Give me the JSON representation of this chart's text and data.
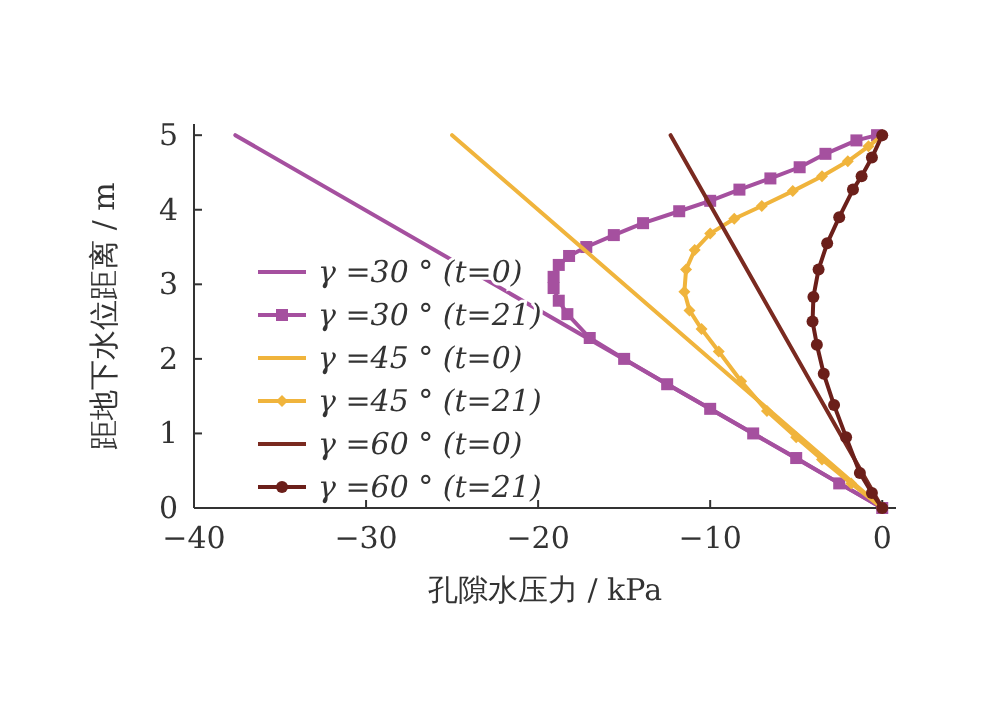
{
  "chart_data": {
    "type": "line",
    "xlabel": "孔隙水压力 / kPa",
    "ylabel": "距地下水位距离 / m",
    "xlim": [
      -40,
      0.8
    ],
    "ylim": [
      0,
      5.15
    ],
    "xticks": [
      -40,
      -30,
      -20,
      -10,
      0
    ],
    "yticks": [
      0,
      1,
      2,
      3,
      4,
      5
    ],
    "grid": false,
    "legend": "left",
    "series": [
      {
        "name": "γ =30 ° (t=0)",
        "color": "#a5509f",
        "x": [
          -37.6,
          0
        ],
        "values": [
          5,
          0
        ]
      },
      {
        "name": "γ =30 ° (t=21)",
        "color": "#a5509f",
        "marker": "square",
        "x": [
          -0.3,
          -1.5,
          -3.3,
          -4.8,
          -6.5,
          -8.3,
          -10,
          -11.8,
          -13.9,
          -15.6,
          -17.2,
          -18.2,
          -18.8,
          -19.1,
          -19.1,
          -18.8,
          -18.3,
          -17,
          -15,
          -12.5,
          -10,
          -7.5,
          -5,
          -2.5,
          0
        ],
        "values": [
          5,
          4.93,
          4.75,
          4.57,
          4.42,
          4.27,
          4.12,
          3.98,
          3.82,
          3.66,
          3.5,
          3.38,
          3.26,
          3.1,
          2.95,
          2.78,
          2.6,
          2.28,
          2,
          1.66,
          1.33,
          1,
          0.67,
          0.33,
          0
        ]
      },
      {
        "name": "γ =45 ° (t=0)",
        "color": "#f0b43c",
        "x": [
          -25,
          0
        ],
        "values": [
          5,
          0
        ]
      },
      {
        "name": "γ =45 ° (t=21)",
        "color": "#f0b43c",
        "marker": "diamond",
        "x": [
          0,
          -0.8,
          -2,
          -3.5,
          -5.2,
          -7,
          -8.6,
          -10,
          -10.9,
          -11.4,
          -11.5,
          -11.2,
          -10.5,
          -9.5,
          -8.2,
          -6.7,
          -5,
          -3.5,
          -1.8,
          0
        ],
        "values": [
          5,
          4.85,
          4.65,
          4.45,
          4.25,
          4.05,
          3.88,
          3.68,
          3.46,
          3.2,
          2.9,
          2.65,
          2.4,
          2.1,
          1.7,
          1.3,
          0.95,
          0.65,
          0.33,
          0
        ]
      },
      {
        "name": "γ =60 ° (t=0)",
        "color": "#7a2a20",
        "x": [
          -12.3,
          0
        ],
        "values": [
          5,
          0
        ]
      },
      {
        "name": "γ =60 ° (t=21)",
        "color": "#6b1f1a",
        "marker": "circle",
        "x": [
          0,
          -0.6,
          -1.2,
          -1.7,
          -2.5,
          -3.2,
          -3.7,
          -4,
          -4.05,
          -3.8,
          -3.4,
          -2.8,
          -2.1,
          -1.3,
          -0.6,
          0
        ],
        "values": [
          5,
          4.7,
          4.45,
          4.27,
          3.9,
          3.55,
          3.2,
          2.83,
          2.5,
          2.19,
          1.8,
          1.38,
          0.95,
          0.47,
          0.2,
          0
        ]
      }
    ]
  }
}
